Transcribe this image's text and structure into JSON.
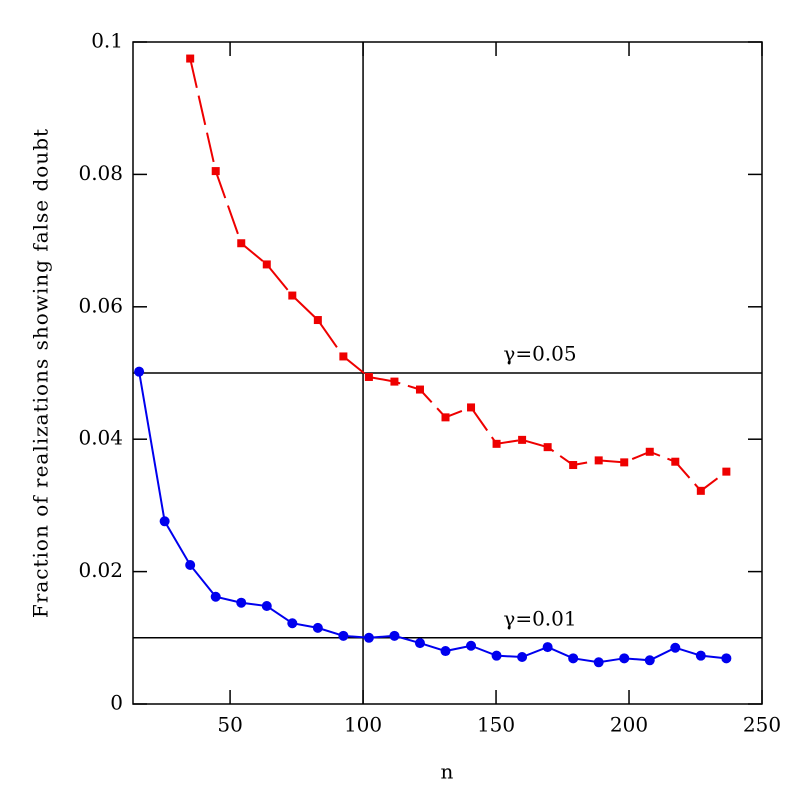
{
  "chart_data": {
    "type": "line",
    "x_label": "n",
    "y_label": "Fraction of realizations showing false doubt",
    "xlim": [
      13.5,
      250
    ],
    "ylim": [
      0,
      0.1
    ],
    "xticks": [
      50,
      100,
      150,
      200,
      250
    ],
    "yticks": [
      0,
      0.02,
      0.04,
      0.06,
      0.08,
      0.1
    ],
    "series": [
      {
        "color": "#0000ee",
        "marker": "circle",
        "dashed": false,
        "x": [
          15.8,
          25.4,
          35,
          44.6,
          54.2,
          63.8,
          73.4,
          83,
          92.6,
          102.2,
          111.8,
          121.4,
          131,
          140.6,
          150.2,
          159.8,
          169.4,
          179,
          188.6,
          198.2,
          207.8,
          217.4,
          227,
          236.6
        ],
        "values": [
          0.0502,
          0.0276,
          0.021,
          0.0162,
          0.0153,
          0.0148,
          0.0122,
          0.0115,
          0.0103,
          0.01,
          0.0103,
          0.0092,
          0.008,
          0.0088,
          0.0073,
          0.0071,
          0.0086,
          0.0069,
          0.0063,
          0.0069,
          0.0066,
          0.0085,
          0.0073,
          0.0069
        ]
      },
      {
        "color": "#ee0000",
        "marker": "square",
        "dashed": true,
        "x": [
          35,
          44.6,
          54.2,
          63.8,
          73.4,
          83,
          92.6,
          102.2,
          111.8,
          121.4,
          131,
          140.6,
          150.2,
          159.8,
          169.4,
          179,
          188.6,
          198.2,
          207.8,
          217.4,
          227,
          236.6
        ],
        "values": [
          0.0975,
          0.0805,
          0.0696,
          0.0664,
          0.0617,
          0.058,
          0.0525,
          0.0494,
          0.0487,
          0.0475,
          0.0433,
          0.0448,
          0.0393,
          0.0399,
          0.0388,
          0.0361,
          0.0368,
          0.0365,
          0.0381,
          0.0366,
          0.0322,
          0.0351
        ]
      }
    ],
    "hlines": [
      {
        "value": 0.05,
        "label": "γ=0.05"
      },
      {
        "value": 0.01,
        "label": "γ=0.01"
      }
    ],
    "vline": 100
  }
}
